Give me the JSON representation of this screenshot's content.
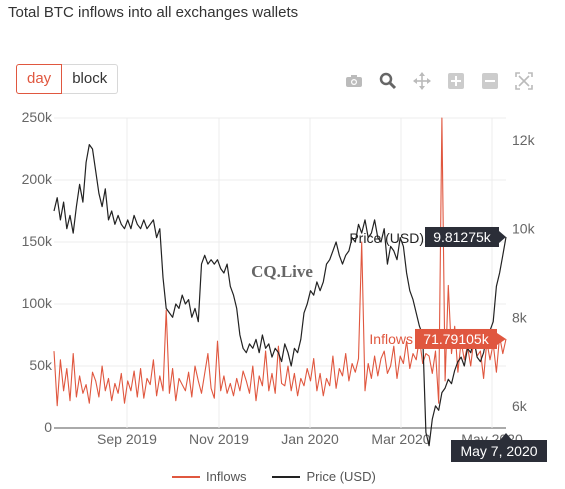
{
  "title": "Total BTC inflows into all exchanges wallets",
  "buttons": {
    "day": "day",
    "block": "block"
  },
  "toolbar": [
    "camera-icon",
    "zoom-icon",
    "pan-icon",
    "zoom-in-icon",
    "zoom-out-icon",
    "autoscale-icon"
  ],
  "watermark": "CQ.Live",
  "hover": {
    "price_label": "Price (USD)",
    "price_value": "9.81275k",
    "inflow_label": "Inflows",
    "inflow_value": "71.79105k",
    "date": "May 7, 2020"
  },
  "colors": {
    "inflows": "#e0573f",
    "price": "#222222",
    "hover_dark": "#2b2e38"
  },
  "chart_data": {
    "type": "line",
    "x_ticks": [
      "Sep 2019",
      "Nov 2019",
      "Jan 2020",
      "Mar 2020",
      "May 2020"
    ],
    "left_axis": {
      "ticks": [
        "0",
        "50k",
        "100k",
        "150k",
        "200k",
        "250k"
      ],
      "range": [
        0,
        250000
      ]
    },
    "right_axis": {
      "ticks": [
        "6k",
        "8k",
        "10k",
        "12k"
      ],
      "range": [
        5500,
        12500
      ]
    },
    "grid": true,
    "legend_position": "bottom",
    "series": [
      {
        "name": "Inflows",
        "axis": "left",
        "values": [
          62000,
          18000,
          55000,
          30000,
          48000,
          22000,
          60000,
          25000,
          42000,
          28000,
          35000,
          20000,
          45000,
          38000,
          25000,
          50000,
          30000,
          40000,
          22000,
          36000,
          28000,
          44000,
          20000,
          38000,
          30000,
          46000,
          25000,
          48000,
          24000,
          40000,
          35000,
          55000,
          26000,
          42000,
          30000,
          95000,
          28000,
          48000,
          22000,
          40000,
          35000,
          30000,
          45000,
          25000,
          50000,
          38000,
          28000,
          44000,
          60000,
          32000,
          24000,
          70000,
          30000,
          42000,
          28000,
          36000,
          26000,
          40000,
          30000,
          46000,
          38000,
          28000,
          50000,
          22000,
          42000,
          34000,
          62000,
          30000,
          44000,
          28000,
          66000,
          36000,
          34000,
          50000,
          30000,
          44000,
          26000,
          40000,
          34000,
          48000,
          38000,
          56000,
          30000,
          44000,
          26000,
          40000,
          34000,
          58000,
          32000,
          48000,
          42000,
          60000,
          38000,
          52000,
          45000,
          56000,
          150000,
          30000,
          52000,
          40000,
          58000,
          42000,
          56000,
          62000,
          44000,
          50000,
          66000,
          40000,
          58000,
          52000,
          70000,
          48000,
          60000,
          55000,
          72000,
          52000,
          60000,
          58000,
          44000,
          62000,
          20000,
          250000,
          38000,
          115000,
          60000,
          82000,
          45000,
          70000,
          55000,
          66000,
          50000,
          72000,
          58000,
          62000,
          40000,
          70000,
          55000,
          68000,
          45000,
          74000,
          60000,
          71791
        ]
      },
      {
        "name": "Price (USD)",
        "axis": "right",
        "values": [
          10400,
          10700,
          10200,
          10600,
          10000,
          10300,
          9900,
          10500,
          11000,
          10600,
          11500,
          11900,
          11800,
          11300,
          10800,
          10500,
          10900,
          10200,
          10400,
          10100,
          10300,
          10100,
          10000,
          10200,
          10000,
          10300,
          10100,
          10000,
          10200,
          10000,
          10100,
          10200,
          9800,
          10000,
          8900,
          8200,
          8100,
          8000,
          8300,
          8200,
          8500,
          8300,
          8400,
          8000,
          8200,
          7900,
          9200,
          9400,
          9200,
          9300,
          9200,
          9300,
          9100,
          9000,
          9200,
          8700,
          8500,
          8200,
          7600,
          7300,
          7200,
          7400,
          7300,
          7500,
          7200,
          7600,
          7300,
          7400,
          7100,
          7300,
          7200,
          7000,
          7400,
          7200,
          6900,
          7300,
          7200,
          7500,
          8100,
          8300,
          8600,
          8500,
          8800,
          8600,
          8800,
          9200,
          9300,
          9500,
          9700,
          9400,
          9200,
          9400,
          9500,
          9800,
          9700,
          10100,
          9900,
          10200,
          9800,
          9900,
          10200,
          9800,
          9700,
          10000,
          9200,
          9600,
          9500,
          9300,
          9800,
          9600,
          9000,
          8600,
          8400,
          8100,
          7800,
          7600,
          5400,
          5100,
          5700,
          6000,
          5900,
          6300,
          6400,
          6600,
          6500,
          6800,
          7000,
          7100,
          6900,
          7300,
          7200,
          7500,
          7100,
          7000,
          7200,
          7600,
          7700,
          7900,
          8700,
          9000,
          9400,
          9813
        ]
      }
    ]
  }
}
